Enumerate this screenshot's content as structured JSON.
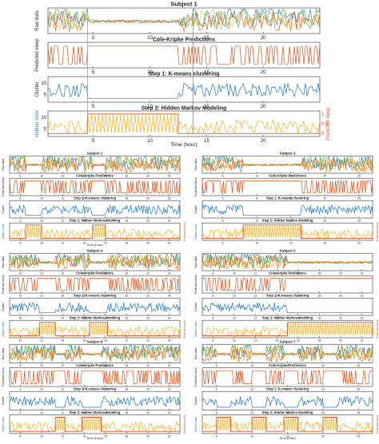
{
  "colors": {
    "raw_orange": "#e8702a",
    "raw_yellow": "#f2c14e",
    "raw_green": "#4caf50",
    "raw_blue": "#2e86c1",
    "pred": "#d9541e",
    "cluster": "#1f78c8",
    "hmm_state": "#f0b323",
    "hmm_sleep": "#d9541e",
    "marker_green": "#22c55e",
    "marker_cyan": "#22d3ee"
  },
  "chart_data": [
    {
      "type": "line",
      "subject": "Subject 1",
      "xlabel": "Time (hour)",
      "xticks": [
        "5",
        "10",
        "15",
        "20"
      ],
      "xlim": [
        1,
        25
      ],
      "panels": [
        {
          "title": "",
          "ylabel": "Raw data",
          "yticks": []
        },
        {
          "title": "Cole-Kripke Predictions",
          "ylabel": "Predicted sleep",
          "yticks": []
        },
        {
          "title": "Step 1: K-means clustering",
          "ylabel": "Cluster",
          "yticks": [
            "5",
            "10"
          ]
        },
        {
          "title": "Step 2: Hidden Markov Modeling",
          "ylabel": "Hidden state",
          "ylabel_right": "Predicted sleep",
          "yticks": [
            "5",
            "10"
          ],
          "yticks_right": [
            "0",
            "0.5",
            "1"
          ]
        }
      ],
      "markers": [
        {
          "x": 4.5,
          "color": "cyan"
        },
        {
          "x": 13.8,
          "color": "green"
        }
      ],
      "sleep_periods": [
        [
          4.5,
          12.5
        ]
      ]
    },
    {
      "type": "line",
      "subject": "Subject 2",
      "xlabel": "Time (hour)",
      "xticks": [
        "8",
        "10",
        "12",
        "14",
        "16",
        "18",
        "20",
        "22"
      ],
      "xlim": [
        7,
        23
      ],
      "panel_titles": [
        "",
        "Cole-Kripke Predictions",
        "Step 1: K-means clustering",
        "Step 2: Hidden Markov Modeling"
      ],
      "ylabels": [
        "Raw data",
        "Predicted sleep",
        "Cluster",
        "Hidden state"
      ],
      "sleep_periods": [
        [
          8.5,
          10.0
        ],
        [
          14.8,
          16.0
        ]
      ]
    },
    {
      "type": "line",
      "subject": "Subject 3",
      "xlabel": "",
      "xticks": [
        "5",
        "10",
        "15",
        "20",
        "25"
      ],
      "xlim": [
        2,
        27
      ],
      "panel_titles": [
        "",
        "Cole-Kripke Predictions",
        "Step 1: K-means clustering",
        "Step 2: Hidden Markov Modeling"
      ],
      "ylabels": [
        "Raw data",
        "Predicted sleep",
        "Cluster",
        "Hidden state"
      ],
      "sleep_periods": [
        [
          8.0,
          16.5
        ]
      ]
    },
    {
      "type": "line",
      "subject": "Subject 4",
      "xlabel": "",
      "xticks": [
        "10",
        "12",
        "14",
        "16",
        "18",
        "20",
        "22",
        "24"
      ],
      "xlim": [
        9,
        25
      ],
      "panel_titles": [
        "",
        "Cole-Kripke Predictions",
        "Step 1: K-means clustering",
        "Step 2: Hidden Markov Modeling"
      ],
      "ylabels": [
        "Raw data",
        "Predicted sleep",
        "Cluster",
        "Hidden state"
      ],
      "sleep_periods": [
        [
          11.8,
          13.3
        ],
        [
          16.5,
          18.2
        ]
      ]
    },
    {
      "type": "line",
      "subject": "Subject 5",
      "xlabel": "",
      "xticks": [
        "8",
        "10",
        "12",
        "14",
        "16",
        "18",
        "20",
        "22"
      ],
      "xlim": [
        7,
        23
      ],
      "panel_titles": [
        "",
        "Cole-Kripke Predictions",
        "Step 1: K-means clustering",
        "Step 2: Hidden Markov Modeling"
      ],
      "ylabels": [
        "Raw data",
        "Predicted sleep",
        "Cluster",
        "Hidden state"
      ],
      "sleep_periods": [
        [
          15.0,
          23.0
        ]
      ]
    },
    {
      "type": "line",
      "subject": "Subject 6",
      "xlabel": "Time (hour)",
      "xticks": [
        "8",
        "10",
        "12",
        "14",
        "16",
        "18",
        "20",
        "22"
      ],
      "xlim": [
        7,
        23
      ],
      "panel_titles": [
        "",
        "Cole-Kripke Predictions",
        "Step 1: K-means clustering",
        "Step 2: Hidden Markov Modeling"
      ],
      "ylabels": [
        "Raw data",
        "Predicted sleep",
        "Cluster",
        "Hidden state"
      ],
      "sleep_periods": [
        [
          11.3,
          12.2
        ],
        [
          13.8,
          15.6
        ]
      ]
    },
    {
      "type": "line",
      "subject": "Subject 7",
      "xlabel": "Time (hour)",
      "xticks": [
        "5",
        "10",
        "15",
        "20",
        "25"
      ],
      "xlim": [
        3,
        27
      ],
      "panel_titles": [
        "",
        "Cole-Kripke Predictions",
        "Step 1: K-means clustering",
        "Step 2: Hidden Markov Modeling"
      ],
      "ylabels": [
        "Raw data",
        "Predicted sleep",
        "Cluster",
        "Hidden state"
      ],
      "sleep_periods": [
        [
          5.0,
          7.0
        ],
        [
          10.0,
          12.0
        ],
        [
          14.5,
          16.5
        ],
        [
          20.0,
          22.0
        ]
      ]
    }
  ]
}
